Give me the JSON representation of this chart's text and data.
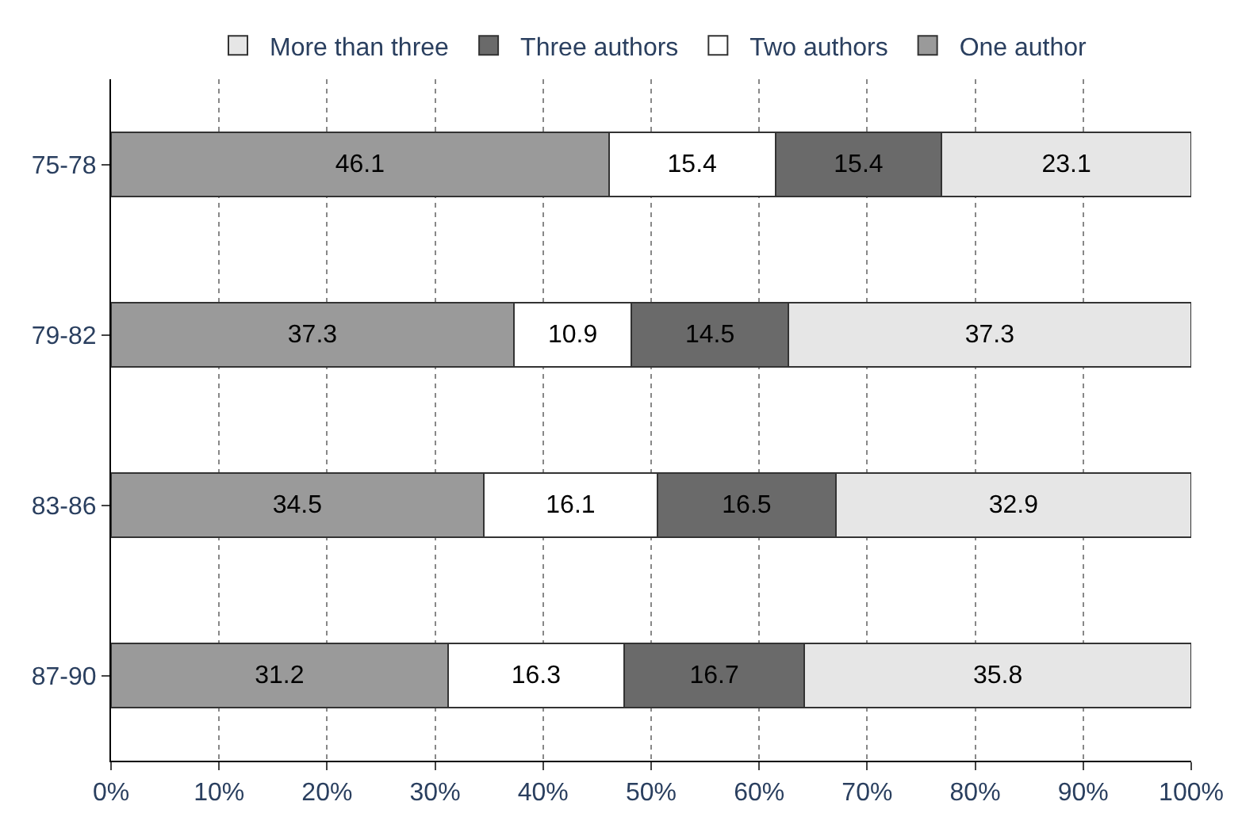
{
  "chart_data": {
    "type": "bar",
    "orientation": "horizontal",
    "stacked": true,
    "data_labels": true,
    "grid": "x",
    "legend": "top",
    "categories": [
      "75-78",
      "79-82",
      "83-86",
      "87-90"
    ],
    "series": [
      {
        "name": "One author",
        "color": "#9a9a9a",
        "values": [
          46.1,
          37.3,
          34.5,
          31.2
        ]
      },
      {
        "name": "Two authors",
        "color": "#ffffff",
        "values": [
          15.4,
          10.9,
          16.1,
          16.3
        ]
      },
      {
        "name": "Three authors",
        "color": "#6a6a6a",
        "values": [
          15.4,
          14.5,
          16.5,
          16.7
        ]
      },
      {
        "name": "More than three",
        "color": "#e6e6e6",
        "values": [
          23.1,
          37.3,
          32.9,
          35.8
        ]
      }
    ],
    "xlim": [
      0,
      100
    ],
    "xticks": [
      {
        "value": 0,
        "label": "0%"
      },
      {
        "value": 10,
        "label": "10%"
      },
      {
        "value": 20,
        "label": "20%"
      },
      {
        "value": 30,
        "label": "30%"
      },
      {
        "value": 40,
        "label": "40%"
      },
      {
        "value": 50,
        "label": "50%"
      },
      {
        "value": 60,
        "label": "60%"
      },
      {
        "value": 70,
        "label": "70%"
      },
      {
        "value": 80,
        "label": "80%"
      },
      {
        "value": 90,
        "label": "90%"
      },
      {
        "value": 100,
        "label": "100%"
      }
    ]
  }
}
